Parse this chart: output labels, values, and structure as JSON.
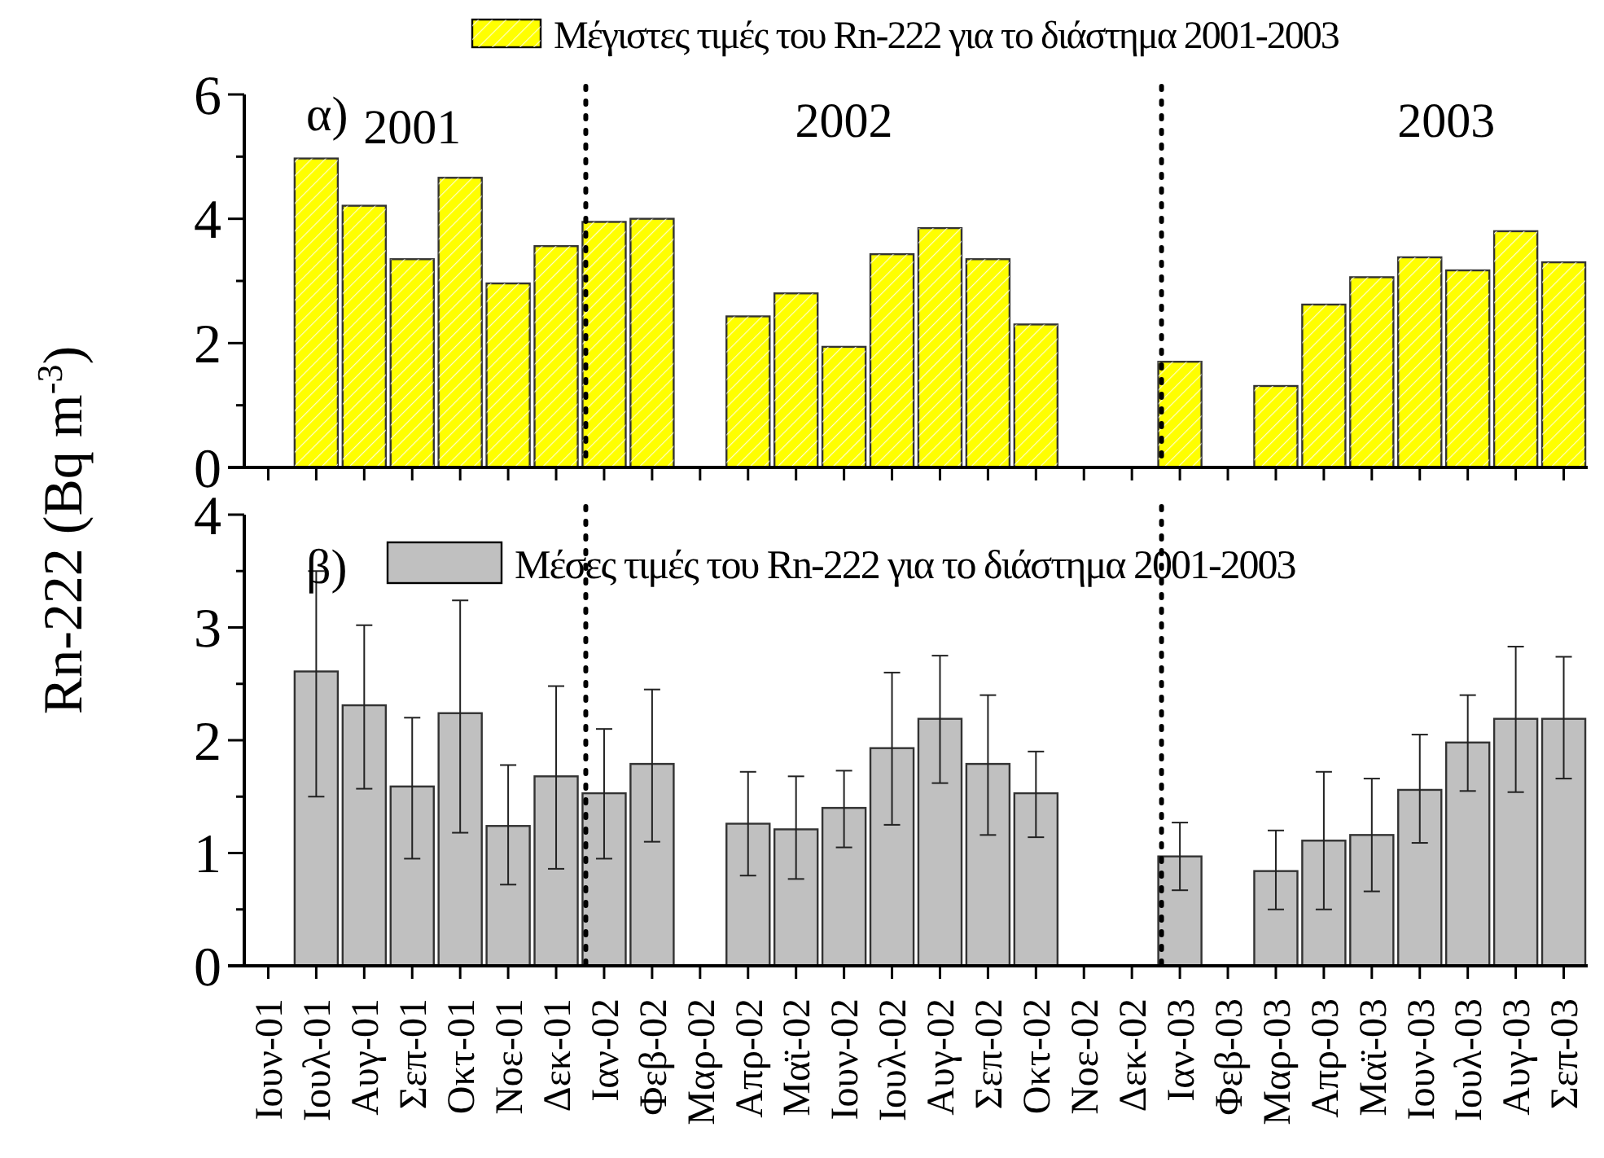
{
  "chart_data": [
    {
      "type": "bar",
      "ylabel": "Rn-222 (Bq m$^{-3}$)",
      "categories": [
        "Ιουν-01",
        "Ιουλ-01",
        "Αυγ-01",
        "Σεπ-01",
        "Οκτ-01",
        "Νοε-01",
        "Δεκ-01",
        "Ιαν-02",
        "Φεβ-02",
        "Μαρ-02",
        "Απρ-02",
        "Μαϊ-02",
        "Ιουν-02",
        "Ιουλ-02",
        "Αυγ-02",
        "Σεπ-02",
        "Οκτ-02",
        "Νοε-02",
        "Δεκ-02",
        "Ιαν-03",
        "Φεβ-03",
        "Μαρ-03",
        "Απρ-03",
        "Μαϊ-03",
        "Ιουν-03",
        "Ιουλ-03",
        "Αυγ-03",
        "Σεπ-03"
      ],
      "series": [
        {
          "name": "Μέγιστες τιμές του Rn-222 για το διάστημα 2001-2003",
          "color": "#ffff00",
          "values": [
            null,
            4.97,
            4.21,
            3.35,
            4.66,
            2.96,
            3.56,
            3.95,
            4.0,
            null,
            2.43,
            2.8,
            1.94,
            3.43,
            3.85,
            3.35,
            2.3,
            null,
            null,
            1.7,
            null,
            1.31,
            2.62,
            3.06,
            3.38,
            3.17,
            3.8,
            3.3
          ]
        }
      ],
      "ylim": [
        0,
        6
      ],
      "yticks": [
        0,
        {
          "value": 1,
          "label": null
        },
        2,
        {
          "value": 3,
          "label": null
        },
        4,
        {
          "value": 5,
          "label": null
        },
        6
      ],
      "tick_labels": "y",
      "legend": "top",
      "grid": false,
      "ref_lines": [
        {
          "axis": "x",
          "value": "Ιαν-02",
          "line_style": "dotted",
          "color": "#000000"
        },
        {
          "axis": "x",
          "value": "Ιαν-03",
          "line_style": "dotted",
          "color": "#000000"
        }
      ],
      "annotations": [
        "α)",
        "2001",
        "2002",
        "2003"
      ]
    },
    {
      "type": "bar",
      "categories": [
        "Ιουν-01",
        "Ιουλ-01",
        "Αυγ-01",
        "Σεπ-01",
        "Οκτ-01",
        "Νοε-01",
        "Δεκ-01",
        "Ιαν-02",
        "Φεβ-02",
        "Μαρ-02",
        "Απρ-02",
        "Μαϊ-02",
        "Ιουν-02",
        "Ιουλ-02",
        "Αυγ-02",
        "Σεπ-02",
        "Οκτ-02",
        "Νοε-02",
        "Δεκ-02",
        "Ιαν-03",
        "Φεβ-03",
        "Μαρ-03",
        "Απρ-03",
        "Μαϊ-03",
        "Ιουν-03",
        "Ιουλ-03",
        "Αυγ-03",
        "Σεπ-03"
      ],
      "series": [
        {
          "name": "Μέσες τιμές του Rn-222 για το διάστημα 2001-2003",
          "color": "#c0c0c0",
          "values": [
            null,
            2.61,
            2.31,
            1.59,
            2.24,
            1.24,
            1.68,
            1.53,
            1.79,
            null,
            1.26,
            1.21,
            1.4,
            1.93,
            2.19,
            1.79,
            1.53,
            null,
            null,
            0.97,
            null,
            0.84,
            1.11,
            1.16,
            1.56,
            1.98,
            2.19,
            2.19
          ],
          "errors": [
            null,
            [
              1.5,
              3.5
            ],
            [
              1.57,
              3.02
            ],
            [
              0.95,
              2.2
            ],
            [
              1.18,
              3.24
            ],
            [
              0.72,
              1.78
            ],
            [
              0.86,
              2.48
            ],
            [
              0.95,
              2.1
            ],
            [
              1.1,
              2.45
            ],
            null,
            [
              0.8,
              1.72
            ],
            [
              0.77,
              1.68
            ],
            [
              1.05,
              1.73
            ],
            [
              1.25,
              2.6
            ],
            [
              1.62,
              2.75
            ],
            [
              1.16,
              2.4
            ],
            [
              1.14,
              1.9
            ],
            null,
            null,
            [
              0.67,
              1.27
            ],
            null,
            [
              0.5,
              1.2
            ],
            [
              0.5,
              1.72
            ],
            [
              0.66,
              1.66
            ],
            [
              1.09,
              2.05
            ],
            [
              1.55,
              2.4
            ],
            [
              1.54,
              2.83
            ],
            [
              1.66,
              2.74
            ]
          ]
        }
      ],
      "ylim": [
        0,
        4
      ],
      "yticks": [
        0,
        {
          "value": 0.5,
          "label": null
        },
        1,
        {
          "value": 1.5,
          "label": null
        },
        2,
        {
          "value": 2.5,
          "label": null
        },
        3,
        {
          "value": 3.5,
          "label": null
        },
        4
      ],
      "legend": "top left",
      "grid": false,
      "ref_lines": [
        {
          "axis": "x",
          "value": "Ιαν-02",
          "line_style": "dotted",
          "color": "#000000"
        },
        {
          "axis": "x",
          "value": "Ιαν-03",
          "line_style": "dotted",
          "color": "#000000"
        }
      ],
      "annotations": [
        "β)"
      ]
    }
  ]
}
